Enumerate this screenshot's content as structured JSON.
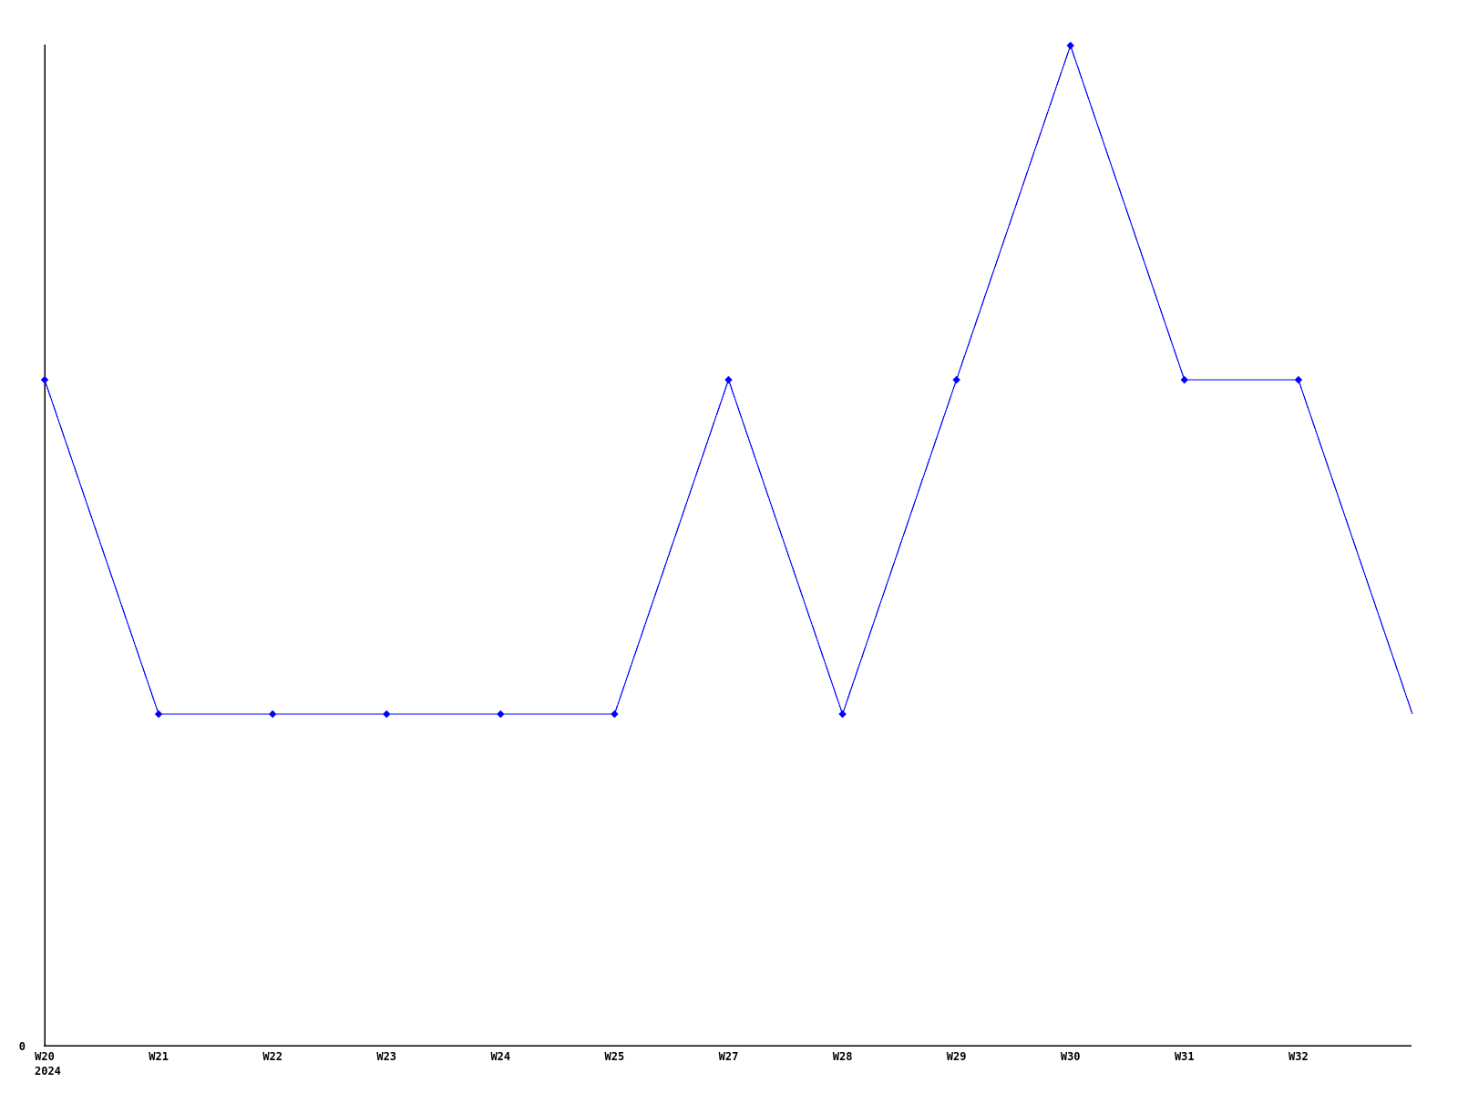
{
  "page": {
    "background_color": "#ffffff"
  },
  "chart_data": {
    "type": "line",
    "title": "",
    "xlabel": "",
    "ylabel": "",
    "series_name": "",
    "categories": [
      "W20",
      "W21",
      "W22",
      "W23",
      "W24",
      "W25",
      "W27",
      "W28",
      "W29",
      "W30",
      "W31",
      "W32",
      ""
    ],
    "values": [
      2,
      1,
      1,
      1,
      1,
      1,
      2,
      1,
      2,
      3,
      2,
      2,
      1
    ],
    "markers": [
      true,
      true,
      true,
      true,
      true,
      true,
      true,
      true,
      true,
      true,
      true,
      true,
      false
    ],
    "ylim": [
      0,
      3
    ],
    "y_tick_labels": [
      "0"
    ],
    "x_axis_secondary_label": "2024",
    "line_color": "#0000ff",
    "marker_color": "#0000ff",
    "axis_color": "#000000",
    "label_color": "#000000",
    "grid": false,
    "legend_position": "none"
  }
}
